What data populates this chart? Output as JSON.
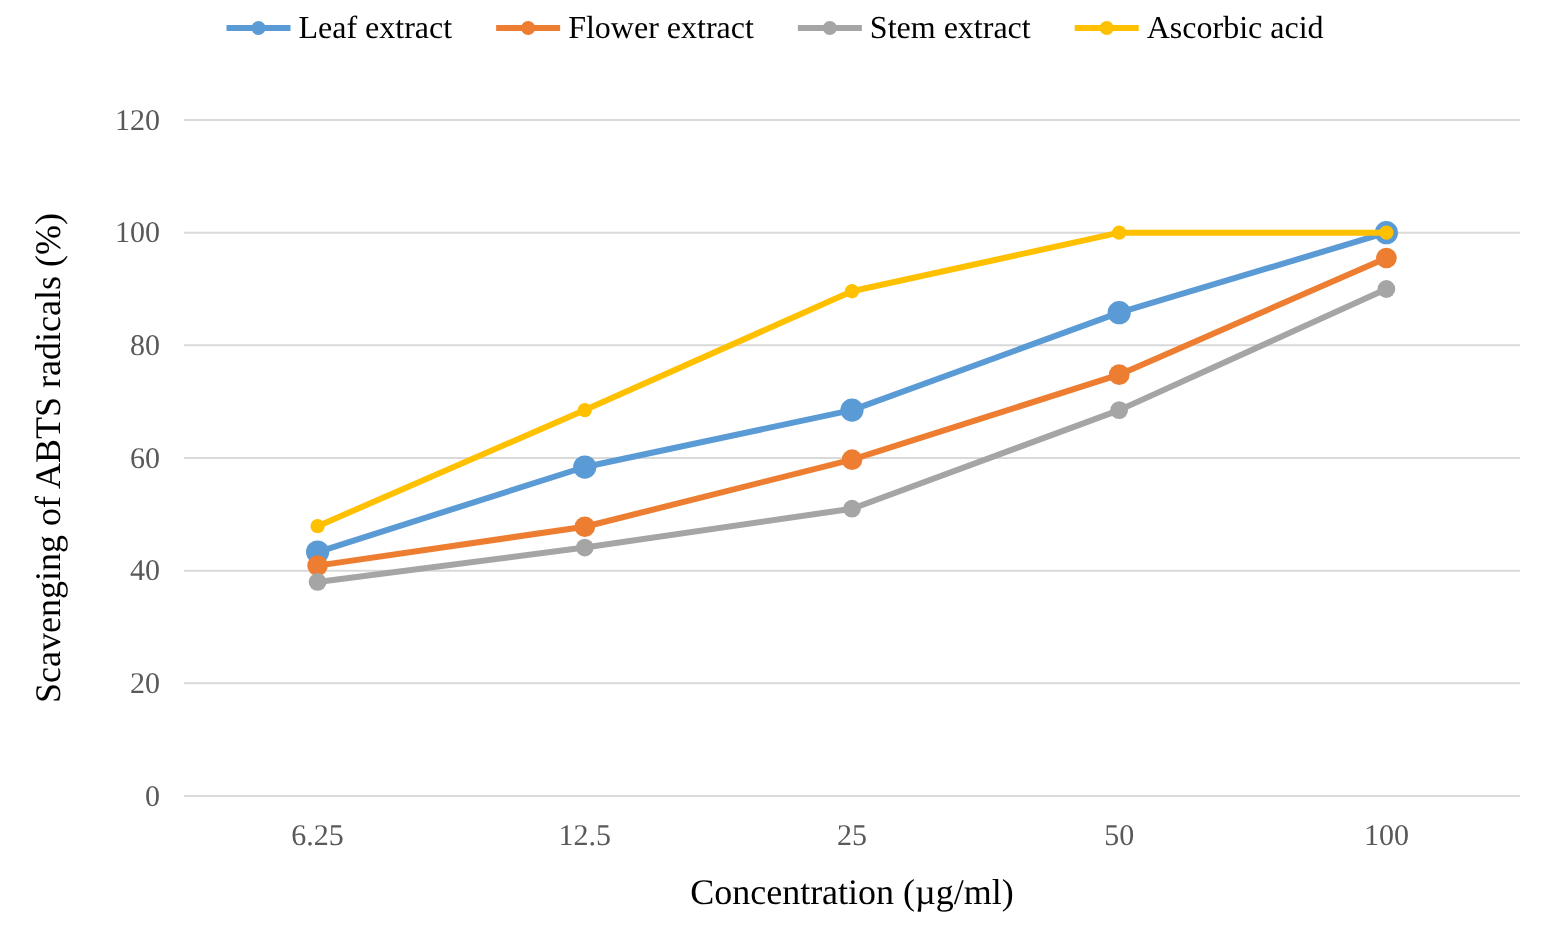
{
  "chart_data": {
    "type": "line",
    "xlabel": "Concentration (µg/ml)",
    "ylabel": "Scavenging of ABTS radicals (%)",
    "categories": [
      "6.25",
      "12.5",
      "25",
      "50",
      "100"
    ],
    "series": [
      {
        "name": "Leaf extract",
        "color": "#5b9bd5",
        "values": [
          43.3,
          58.4,
          68.5,
          85.8,
          100
        ]
      },
      {
        "name": "Flower extract",
        "color": "#ed7d31",
        "values": [
          40.9,
          47.8,
          59.7,
          74.8,
          95.5
        ]
      },
      {
        "name": "Stem extract",
        "color": "#a5a5a5",
        "values": [
          38,
          44.1,
          51,
          68.5,
          90
        ]
      },
      {
        "name": "Ascorbic acid",
        "color": "#ffc000",
        "values": [
          47.9,
          68.5,
          89.6,
          100,
          100
        ]
      }
    ],
    "ylim": [
      0,
      120
    ],
    "yticks": [
      0,
      20,
      40,
      60,
      80,
      100,
      120
    ],
    "grid": "y",
    "legend": "top",
    "marker": "circle",
    "line_style": "solid"
  }
}
